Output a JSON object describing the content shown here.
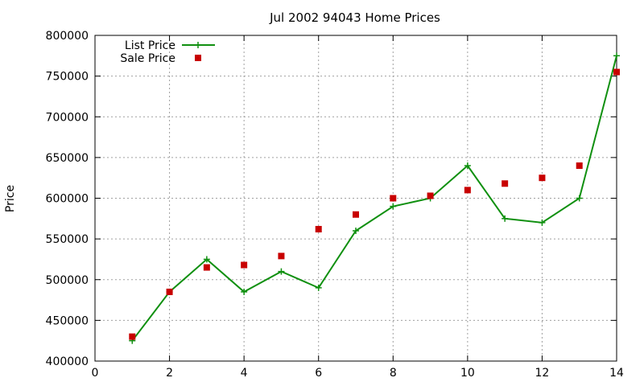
{
  "chart_data": {
    "type": "line",
    "title": "Jul 2002 94043 Home Prices",
    "xlabel": "",
    "ylabel": "Price",
    "xlim": [
      0,
      14
    ],
    "ylim": [
      400000,
      800000
    ],
    "xticks": [
      0,
      2,
      4,
      6,
      8,
      10,
      12,
      14
    ],
    "yticks": [
      400000,
      450000,
      500000,
      550000,
      600000,
      650000,
      700000,
      750000,
      800000
    ],
    "grid": true,
    "legend_position": "top-left",
    "series": [
      {
        "name": "List Price",
        "style": "line with plus markers",
        "color": "#109010",
        "x": [
          1,
          2,
          3,
          4,
          5,
          6,
          7,
          8,
          9,
          10,
          11,
          12,
          13,
          14
        ],
        "y": [
          425000,
          485000,
          525000,
          485000,
          510000,
          490000,
          560000,
          590000,
          600000,
          640000,
          575000,
          570000,
          600000,
          775000
        ]
      },
      {
        "name": "Sale Price",
        "style": "square markers",
        "color": "#c80000",
        "x": [
          1,
          2,
          3,
          4,
          5,
          6,
          7,
          8,
          9,
          10,
          11,
          12,
          13,
          14
        ],
        "y": [
          430000,
          485000,
          515000,
          518000,
          529000,
          562000,
          580000,
          600000,
          603000,
          610000,
          618000,
          625000,
          640000,
          755000
        ]
      }
    ]
  }
}
